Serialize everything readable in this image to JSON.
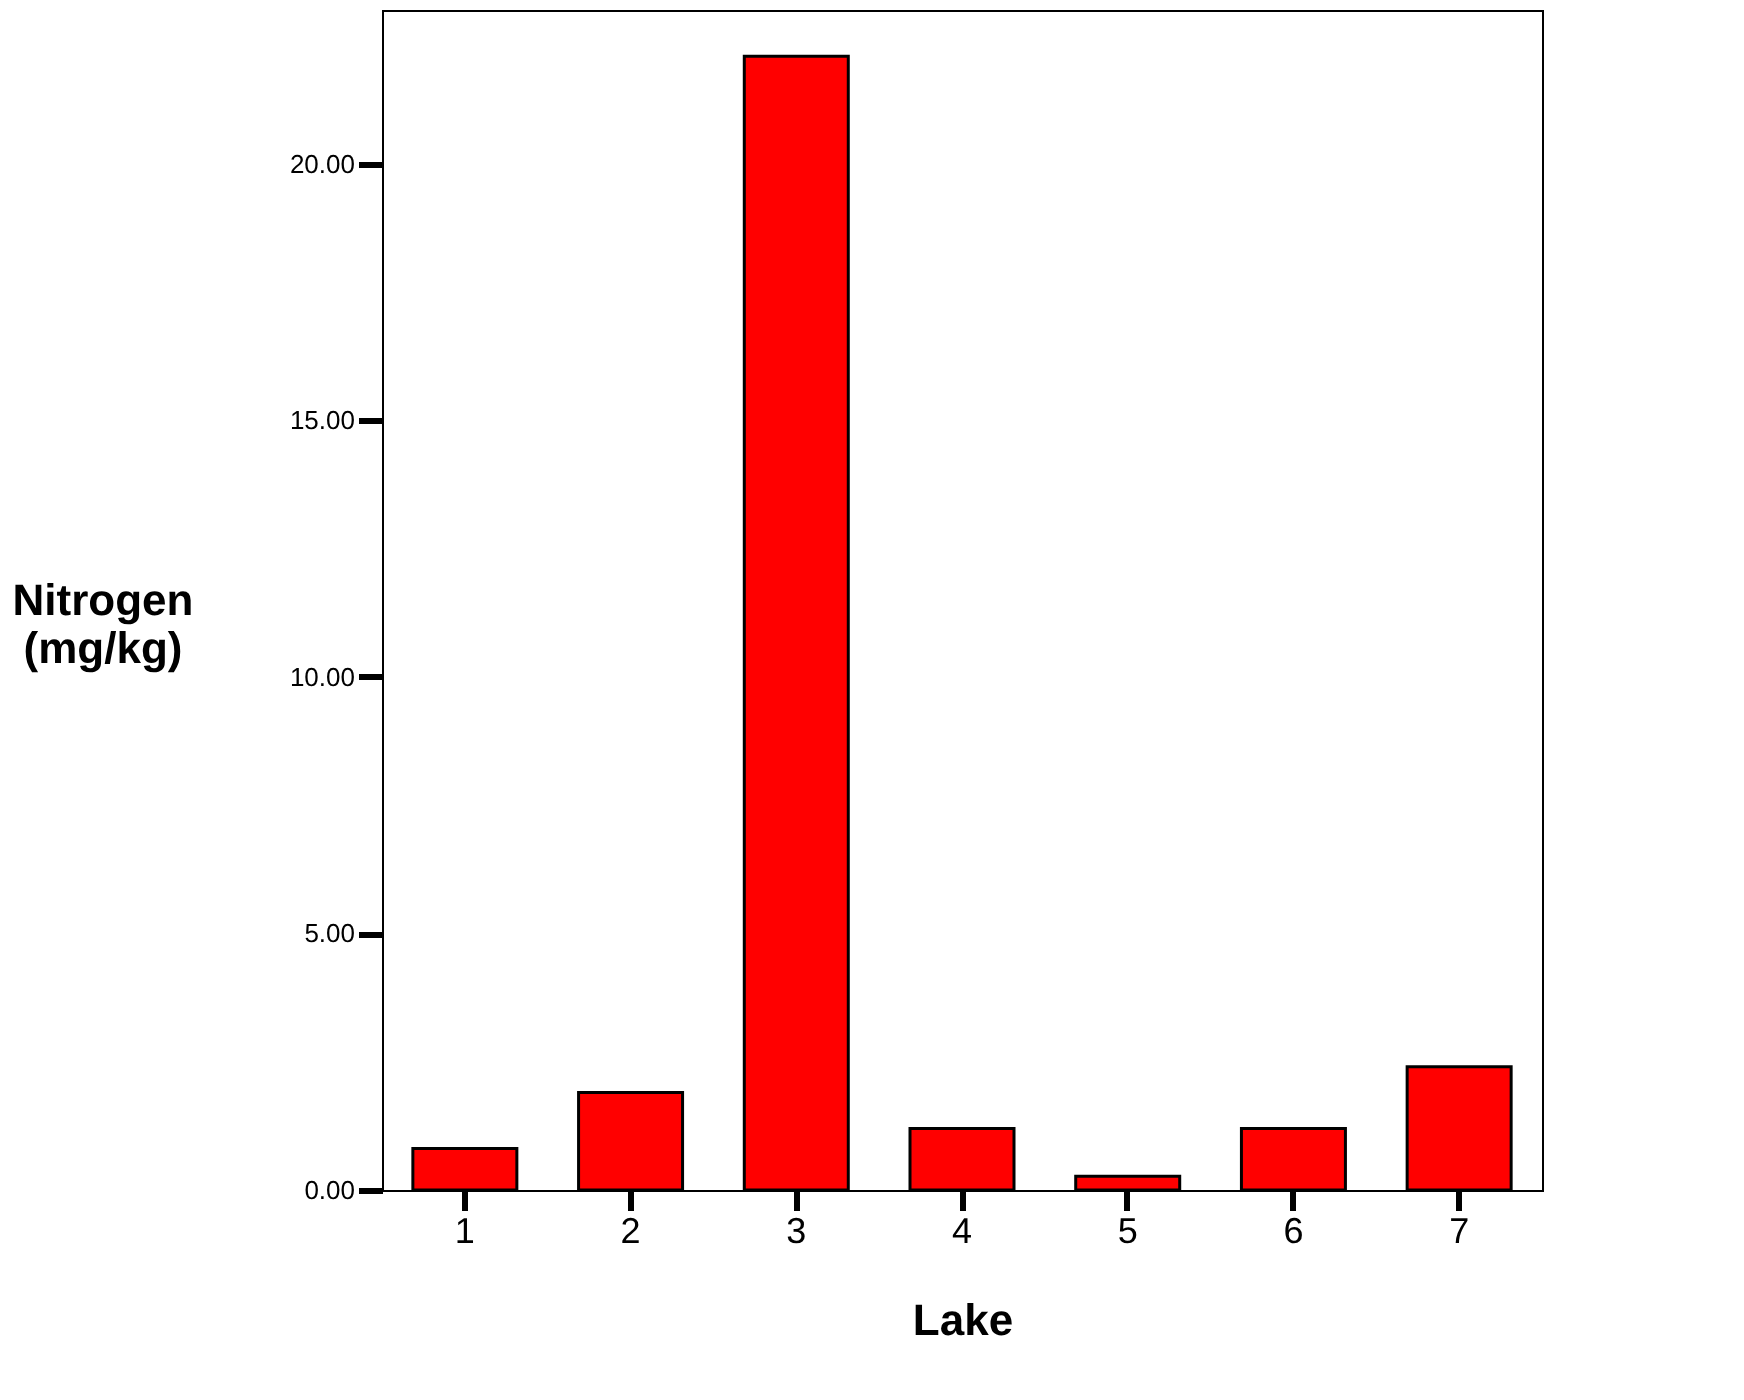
{
  "chart_data": {
    "type": "bar",
    "xlabel": "Lake",
    "ylabel": "Nitrogen (mg/kg)",
    "categories": [
      "1",
      "2",
      "3",
      "4",
      "5",
      "6",
      "7"
    ],
    "values": [
      0.81,
      1.9,
      22.1,
      1.2,
      0.27,
      1.2,
      2.4
    ],
    "color": "#ff0000",
    "ylim": [
      0,
      23.0
    ],
    "yticks": [
      {
        "value": 0,
        "label": "0.00"
      },
      {
        "value": 5,
        "label": "5.00"
      },
      {
        "value": 10,
        "label": "10.00"
      },
      {
        "value": 15,
        "label": "15.00"
      },
      {
        "value": 20,
        "label": "20.00"
      }
    ],
    "grid": false
  }
}
